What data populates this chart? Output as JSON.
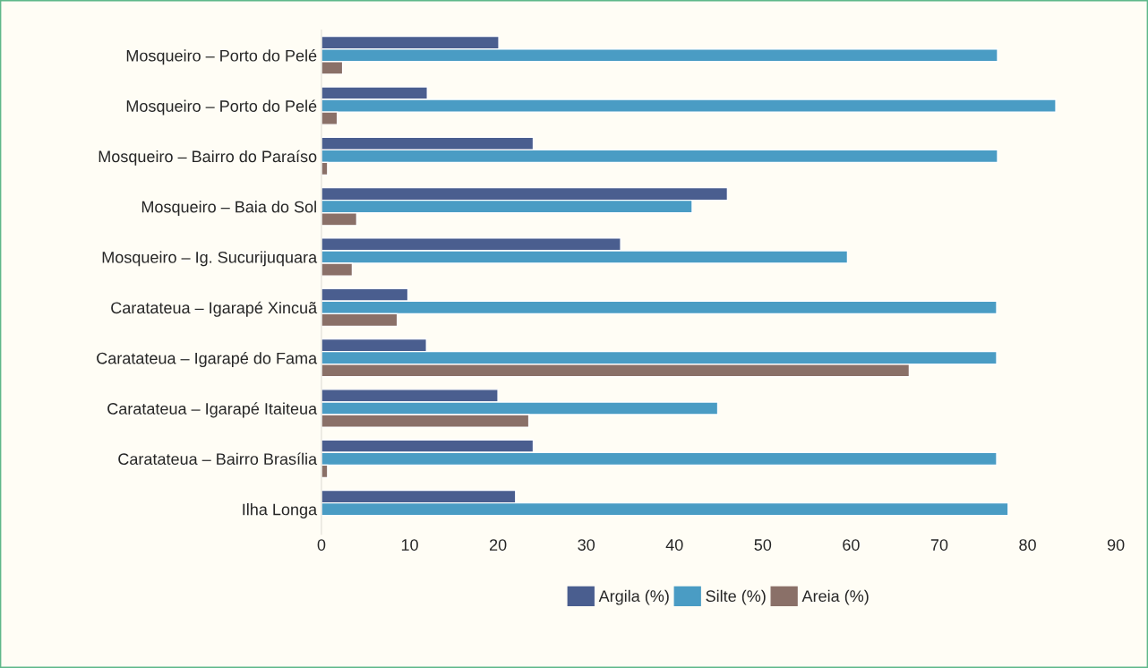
{
  "chart_data": {
    "type": "bar",
    "orientation": "horizontal",
    "categories": [
      "Mosqueiro – Porto do Pelé",
      "Mosqueiro – Porto do Pelé",
      "Mosqueiro – Bairro do Paraíso",
      "Mosqueiro – Baia do Sol",
      "Mosqueiro – Ig. Sucurijuquara",
      "Caratateua – Igarapé Xincuã",
      "Caratateua – Igarapé do Fama",
      "Caratateua – Igarapé Itaiteua",
      "Caratateua – Bairro Brasília",
      "Ilha Longa"
    ],
    "series": [
      {
        "name": "Argila (%)",
        "color": "#4a5e8f",
        "values": [
          20.1,
          12.0,
          24.0,
          46.0,
          33.9,
          9.8,
          11.9,
          20.0,
          24.0,
          22.0
        ]
      },
      {
        "name": "Silte (%)",
        "color": "#4a9cc4",
        "values": [
          76.6,
          83.2,
          76.6,
          42.0,
          59.6,
          76.5,
          76.5,
          44.9,
          76.5,
          77.8
        ]
      },
      {
        "name": "Areia (%)",
        "color": "#8a7068",
        "values": [
          2.4,
          1.8,
          0.7,
          4.0,
          3.5,
          8.6,
          66.6,
          23.5,
          0.7,
          null
        ]
      }
    ],
    "xlim": [
      0,
      90
    ],
    "xticks": [
      0,
      10,
      20,
      30,
      40,
      50,
      60,
      70,
      80,
      90
    ],
    "grid": false,
    "legend": "bottom"
  }
}
